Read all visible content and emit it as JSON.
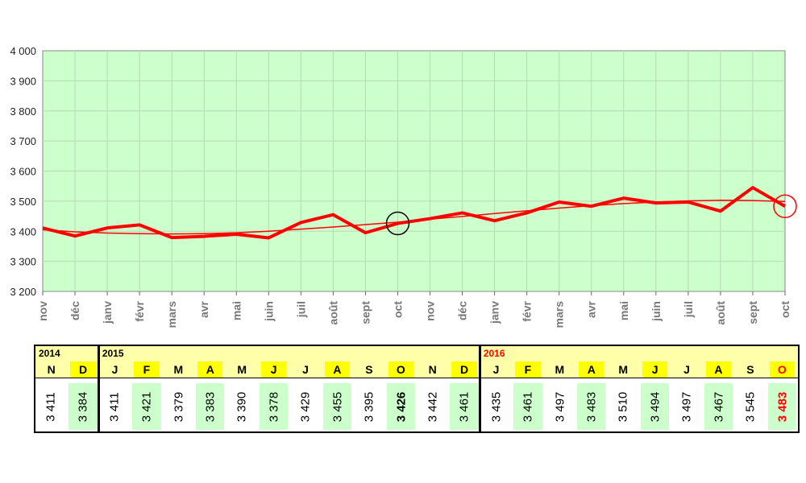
{
  "chart_data": {
    "type": "line",
    "x": [
      "nov",
      "déc",
      "janv",
      "févr",
      "mars",
      "avr",
      "mai",
      "juin",
      "juil",
      "août",
      "sept",
      "oct",
      "nov",
      "déc",
      "janv",
      "févr",
      "mars",
      "avr",
      "mai",
      "juin",
      "juil",
      "août",
      "sept",
      "oct"
    ],
    "series": [
      {
        "values": [
          3411,
          3384,
          3411,
          3421,
          3379,
          3383,
          3390,
          3378,
          3429,
          3455,
          3395,
          3426,
          3442,
          3461,
          3435,
          3461,
          3497,
          3483,
          3510,
          3494,
          3497,
          3467,
          3545,
          3483
        ],
        "color": "#ff0000"
      }
    ],
    "trend": {
      "values": [
        3405,
        3398,
        3394,
        3392,
        3391,
        3392,
        3395,
        3400,
        3407,
        3414,
        3422,
        3430,
        3440,
        3449,
        3459,
        3468,
        3477,
        3485,
        3492,
        3497,
        3501,
        3503,
        3502,
        3499
      ],
      "color": "#ff0000"
    },
    "ylim": [
      3200,
      4000
    ],
    "yticks": [
      "3 200",
      "3 300",
      "3 400",
      "3 500",
      "3 600",
      "3 700",
      "3 800",
      "3 900",
      "4 000"
    ],
    "grid": true,
    "plot_background": "#ccffcc",
    "circled_points": [
      {
        "index": 11,
        "color": "#000000"
      },
      {
        "index": 23,
        "color": "#ff0000"
      }
    ]
  },
  "table": {
    "years": [
      {
        "label": "2014",
        "color": "#000000"
      },
      {
        "label": "2015",
        "color": "#000000"
      },
      {
        "label": "2016",
        "color": "#ff0000"
      }
    ],
    "months": [
      "N",
      "D",
      "J",
      "F",
      "M",
      "A",
      "M",
      "J",
      "J",
      "A",
      "S",
      "O",
      "N",
      "D",
      "J",
      "F",
      "M",
      "A",
      "M",
      "J",
      "J",
      "A",
      "S",
      "O"
    ],
    "values": [
      "3 411",
      "3 384",
      "3 411",
      "3 421",
      "3 379",
      "3 383",
      "3 390",
      "3 378",
      "3 429",
      "3 455",
      "3 395",
      "3 426",
      "3 442",
      "3 461",
      "3 435",
      "3 461",
      "3 497",
      "3 483",
      "3 510",
      "3 494",
      "3 497",
      "3 467",
      "3 545",
      "3 483"
    ],
    "bold_indices": [
      11,
      23
    ],
    "last_value_color": "#ff0000",
    "colors": {
      "header_bg": "#ffffaa",
      "highlight_month": "#ffff00",
      "highlight_cell": "#ccffcc"
    }
  }
}
